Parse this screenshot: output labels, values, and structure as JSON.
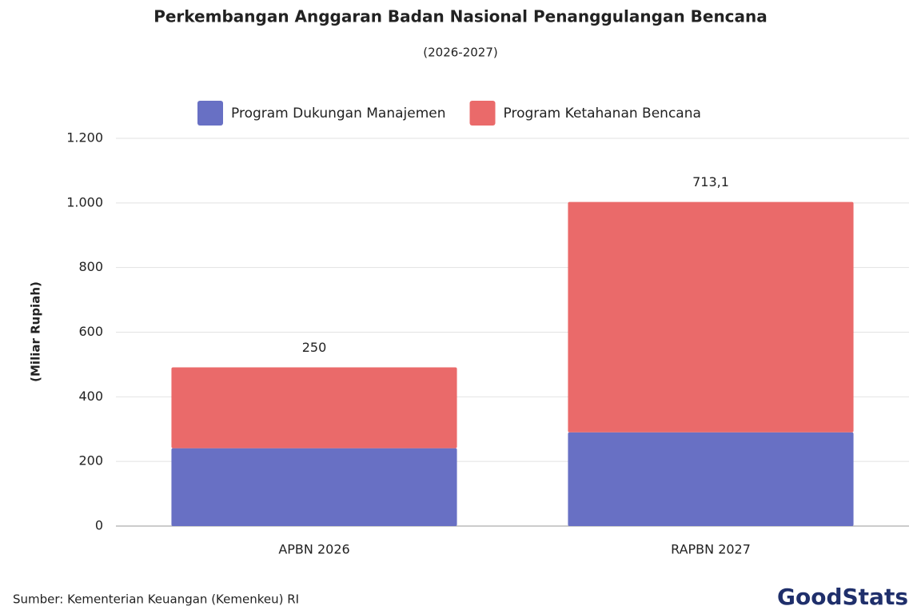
{
  "chart_data": {
    "type": "stacked-bar",
    "title": "Perkembangan Anggaran Badan Nasional Penanggulangan Bencana",
    "subtitle": "(2026-2027)",
    "y_label": "(Miliar Rupiah)",
    "categories": [
      "APBN 2026",
      "RAPBN 2027"
    ],
    "series": [
      {
        "name": "Program Dukungan Manajemen",
        "color": "#6870c4",
        "values": [
          241,
          290
        ]
      },
      {
        "name": "Program Ketahanan Bencana",
        "color": "#ea6a6a",
        "values": [
          250,
          713.1
        ],
        "value_labels": [
          "250",
          "713,1"
        ]
      }
    ],
    "ylim": [
      0,
      1200
    ],
    "yticks": [
      0,
      200,
      400,
      600,
      800,
      {
        "value": 1000,
        "label": "1.000"
      },
      {
        "value": 1200,
        "label": "1.200"
      }
    ],
    "grid": true,
    "legend": "top",
    "source": "Sumber: Kementerian Keuangan (Kemenkeu) RI",
    "logo": "GoodStats"
  }
}
